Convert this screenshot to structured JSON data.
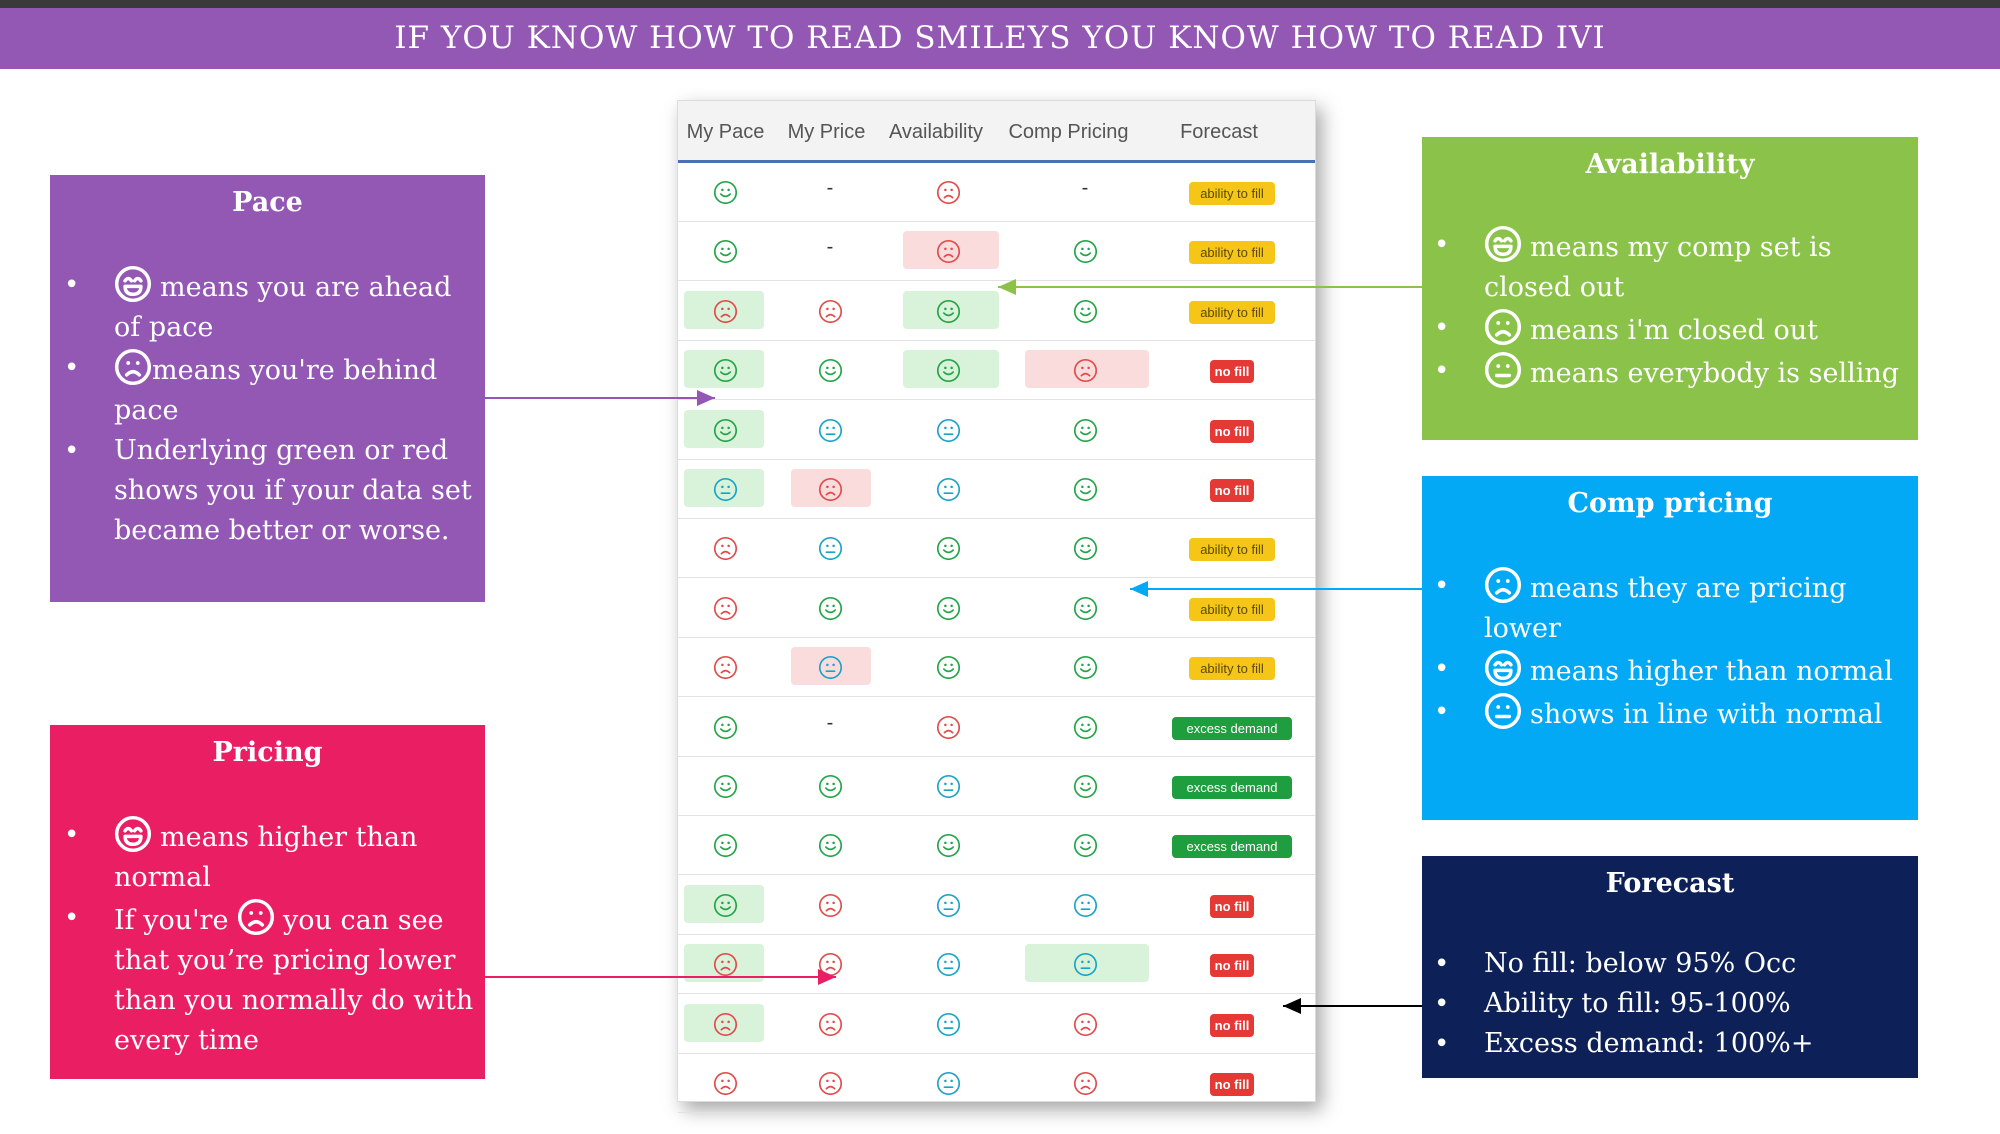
{
  "title": "IF YOU KNOW HOW TO READ SMILEYS YOU KNOW HOW TO READ IVI",
  "colors": {
    "purple": "#9358b4",
    "pink": "#e91e63",
    "green": "#8bc34a",
    "blue": "#03a9f4",
    "navy": "#0d2158",
    "smile_green": "#22a447",
    "sad_red": "#e14b4b",
    "neutral_blue": "#1ba3c6"
  },
  "pace": {
    "heading": "Pace",
    "items": [
      {
        "icon": "laughing-face-icon",
        "text": "means you are ahead of pace"
      },
      {
        "icon": "sad-face-icon",
        "text": "means you're behind pace"
      },
      {
        "icon": "",
        "text": "Underlying green or red shows you if your data set became better or worse."
      }
    ]
  },
  "pricing": {
    "heading": "Pricing",
    "items": [
      {
        "icon": "laughing-face-icon",
        "text": "means higher than normal"
      },
      {
        "pre": "If you're",
        "icon": "sad-face-icon",
        "text": "you can see that you’re pricing lower than you normally do with every time"
      }
    ]
  },
  "availability": {
    "heading": "Availability",
    "items": [
      {
        "icon": "laughing-face-icon",
        "text": "means my comp set is closed out"
      },
      {
        "icon": "sad-face-icon",
        "text": "means i'm closed out"
      },
      {
        "icon": "neutral-face-icon",
        "text": "means everybody is selling"
      }
    ]
  },
  "comp_pricing": {
    "heading": "Comp pricing",
    "items": [
      {
        "icon": "sad-face-icon",
        "text": "means they are pricing lower"
      },
      {
        "icon": "laughing-face-icon",
        "text": "means higher than normal"
      },
      {
        "icon": "neutral-face-icon",
        "text": "shows in line with normal"
      }
    ]
  },
  "forecast_box": {
    "heading": "Forecast",
    "items": [
      "No fill: below 95% Occ",
      "Ability to fill: 95-100%",
      "Excess demand: 100%+"
    ]
  },
  "table": {
    "headers": [
      "My Pace",
      "My Price",
      "Availability",
      "Comp Pricing",
      "Forecast"
    ],
    "forecast_labels": {
      "fill": "ability to fill",
      "nofill": "no fill",
      "excess": "excess demand"
    },
    "rows": [
      {
        "cells": [
          {
            "f": "happy"
          },
          {
            "f": "dash"
          },
          {
            "f": "sad"
          },
          {
            "f": "dash"
          }
        ],
        "forecast": "fill"
      },
      {
        "cells": [
          {
            "f": "happy"
          },
          {
            "f": "dash"
          },
          {
            "f": "sad",
            "hl": "red"
          },
          {
            "f": "happy"
          }
        ],
        "forecast": "fill"
      },
      {
        "cells": [
          {
            "f": "sad",
            "hl": "green"
          },
          {
            "f": "sad"
          },
          {
            "f": "happy",
            "hl": "green"
          },
          {
            "f": "happy"
          }
        ],
        "forecast": "fill"
      },
      {
        "cells": [
          {
            "f": "happy",
            "hl": "green"
          },
          {
            "f": "happy"
          },
          {
            "f": "happy",
            "hl": "green"
          },
          {
            "f": "sad",
            "hl": "red"
          }
        ],
        "forecast": "nofill"
      },
      {
        "cells": [
          {
            "f": "happy",
            "hl": "green"
          },
          {
            "f": "neutral"
          },
          {
            "f": "neutral"
          },
          {
            "f": "happy"
          }
        ],
        "forecast": "nofill"
      },
      {
        "cells": [
          {
            "f": "neutral",
            "hl": "green"
          },
          {
            "f": "sad",
            "hl": "red"
          },
          {
            "f": "neutral"
          },
          {
            "f": "happy"
          }
        ],
        "forecast": "nofill"
      },
      {
        "cells": [
          {
            "f": "sad"
          },
          {
            "f": "neutral"
          },
          {
            "f": "happy"
          },
          {
            "f": "happy"
          }
        ],
        "forecast": "fill"
      },
      {
        "cells": [
          {
            "f": "sad"
          },
          {
            "f": "happy"
          },
          {
            "f": "happy"
          },
          {
            "f": "happy"
          }
        ],
        "forecast": "fill"
      },
      {
        "cells": [
          {
            "f": "sad"
          },
          {
            "f": "neutral",
            "hl": "red"
          },
          {
            "f": "happy"
          },
          {
            "f": "happy"
          }
        ],
        "forecast": "fill"
      },
      {
        "cells": [
          {
            "f": "happy"
          },
          {
            "f": "dash"
          },
          {
            "f": "sad"
          },
          {
            "f": "happy"
          }
        ],
        "forecast": "excess"
      },
      {
        "cells": [
          {
            "f": "happy"
          },
          {
            "f": "happy"
          },
          {
            "f": "neutral"
          },
          {
            "f": "happy"
          }
        ],
        "forecast": "excess"
      },
      {
        "cells": [
          {
            "f": "happy"
          },
          {
            "f": "happy"
          },
          {
            "f": "happy"
          },
          {
            "f": "happy"
          }
        ],
        "forecast": "excess"
      },
      {
        "cells": [
          {
            "f": "happy",
            "hl": "green"
          },
          {
            "f": "sad"
          },
          {
            "f": "neutral"
          },
          {
            "f": "neutral"
          }
        ],
        "forecast": "nofill"
      },
      {
        "cells": [
          {
            "f": "sad",
            "hl": "green"
          },
          {
            "f": "sad"
          },
          {
            "f": "neutral"
          },
          {
            "f": "neutral",
            "hl": "green"
          }
        ],
        "forecast": "nofill"
      },
      {
        "cells": [
          {
            "f": "sad",
            "hl": "green"
          },
          {
            "f": "sad"
          },
          {
            "f": "neutral"
          },
          {
            "f": "sad"
          }
        ],
        "forecast": "nofill"
      },
      {
        "cells": [
          {
            "f": "sad"
          },
          {
            "f": "sad"
          },
          {
            "f": "neutral"
          },
          {
            "f": "sad"
          }
        ],
        "forecast": "nofill"
      }
    ]
  }
}
